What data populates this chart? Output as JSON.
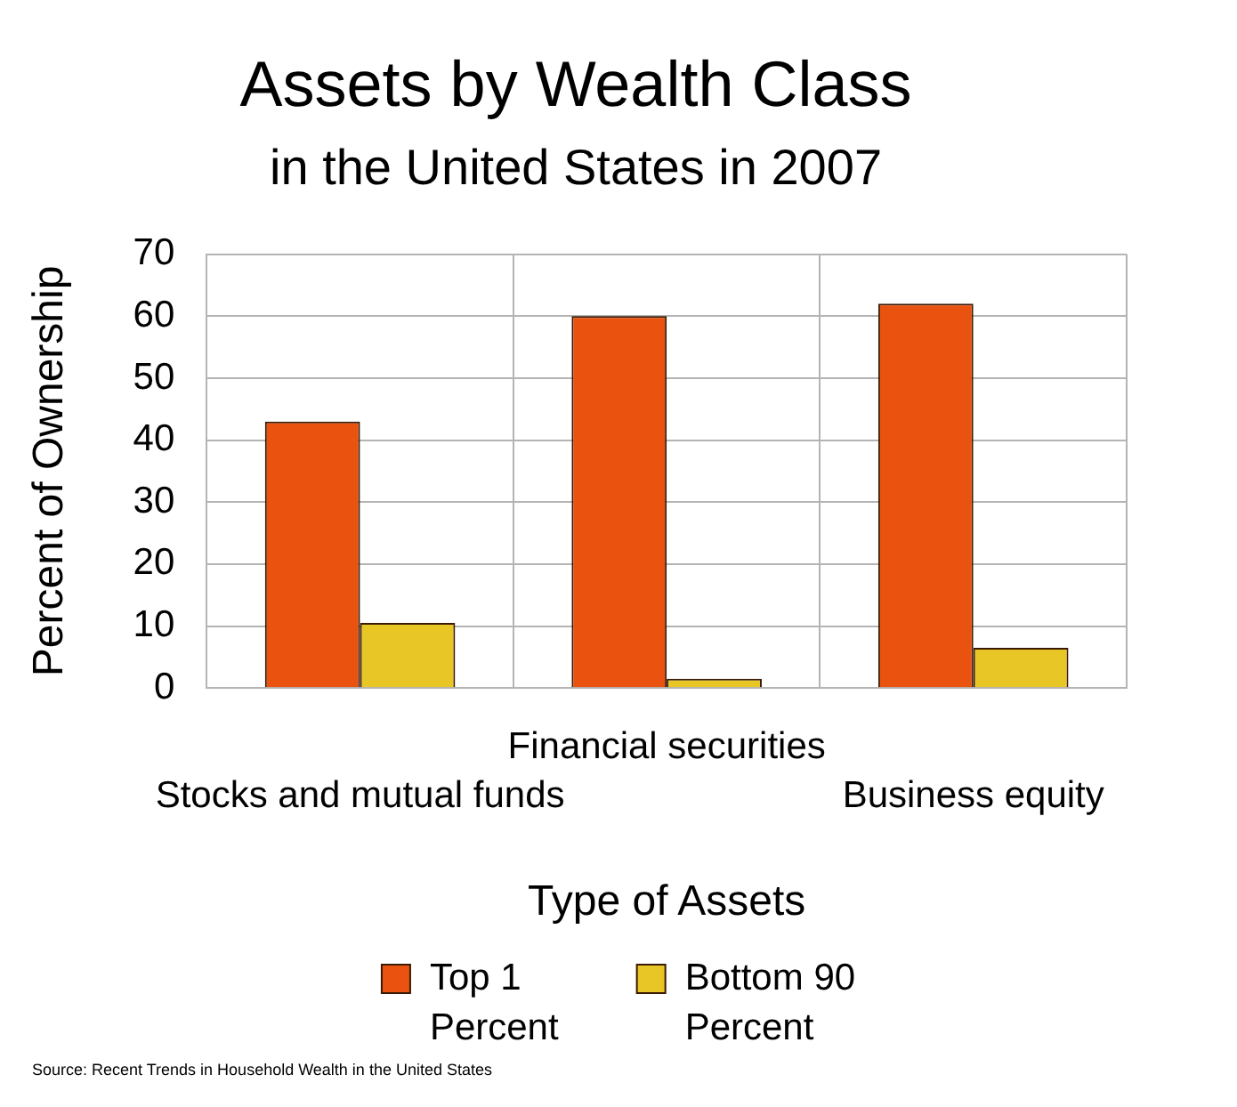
{
  "chart_data": {
    "type": "bar",
    "title": "Assets by Wealth Class",
    "subtitle": "in the United States in 2007",
    "xlabel": "Type of Assets",
    "ylabel": "Percent of Ownership",
    "categories": [
      "Stocks and mutual funds",
      "Financial securities",
      "Business equity"
    ],
    "series": [
      {
        "name": "Top 1 Percent",
        "color": "#ea530f",
        "values": [
          43,
          60,
          62
        ]
      },
      {
        "name": "Bottom 90 Percent",
        "color": "#e8c625",
        "values": [
          10.5,
          1.5,
          6.5
        ]
      }
    ],
    "ylim": [
      0,
      70
    ],
    "yticks": [
      0,
      10,
      20,
      30,
      40,
      50,
      60,
      70
    ],
    "grid": true,
    "legend": "bottom",
    "annotations": [
      "Source: Recent Trends in Household Wealth in the United States"
    ]
  }
}
